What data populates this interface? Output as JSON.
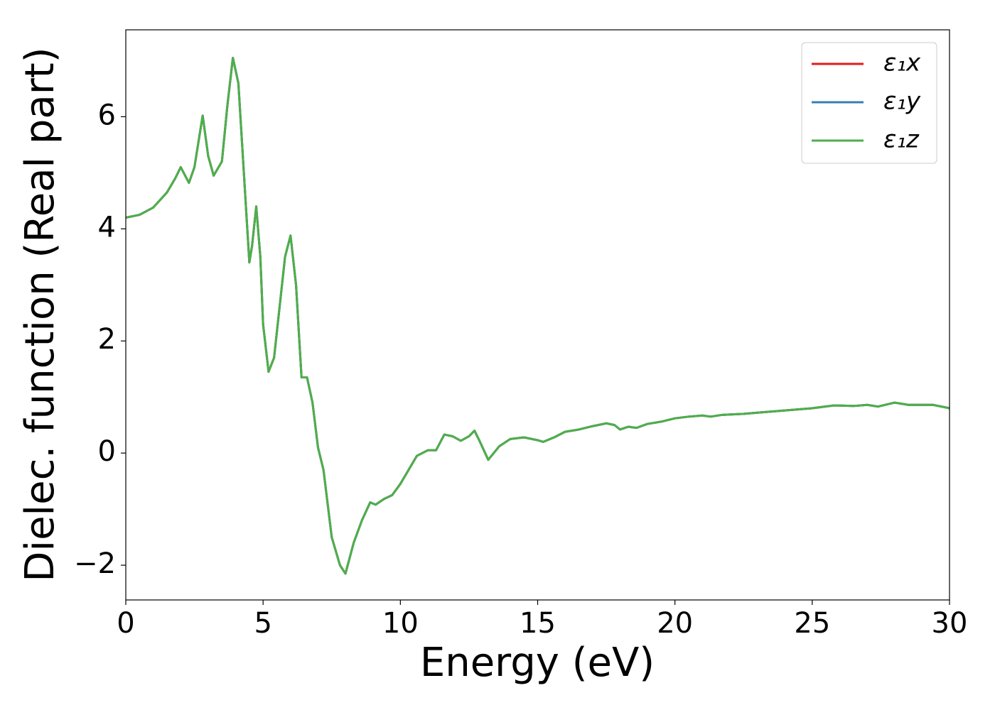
{
  "chart_data": {
    "type": "line",
    "xlabel": "Energy (eV)",
    "ylabel": "Dielec. function (Real part)",
    "x": [
      0,
      0.5,
      1,
      1.5,
      1.8,
      2.0,
      2.3,
      2.5,
      2.8,
      3.0,
      3.2,
      3.5,
      3.7,
      3.9,
      4.1,
      4.3,
      4.5,
      4.6,
      4.75,
      4.9,
      5.0,
      5.2,
      5.4,
      5.6,
      5.8,
      6.0,
      6.2,
      6.4,
      6.6,
      6.8,
      7.0,
      7.2,
      7.5,
      7.8,
      8.0,
      8.3,
      8.6,
      8.9,
      9.1,
      9.4,
      9.7,
      10.0,
      10.3,
      10.6,
      11.0,
      11.3,
      11.6,
      11.9,
      12.2,
      12.5,
      12.7,
      12.9,
      13.2,
      13.6,
      14.0,
      14.5,
      15.0,
      15.2,
      15.6,
      16.0,
      16.5,
      17.0,
      17.5,
      17.8,
      18.0,
      18.3,
      18.6,
      19.0,
      19.5,
      20.0,
      20.5,
      21.0,
      21.3,
      21.7,
      22.5,
      23,
      24,
      25,
      25.8,
      26.5,
      27,
      27.4,
      28,
      28.5,
      29,
      29.4,
      30
    ],
    "series": [
      {
        "name": "ε₁x",
        "color": "#e41a1c",
        "values": [
          4.2,
          4.25,
          4.38,
          4.65,
          4.9,
          5.1,
          4.82,
          5.1,
          6.02,
          5.3,
          4.95,
          5.2,
          6.2,
          7.05,
          6.6,
          5.0,
          3.4,
          3.7,
          4.4,
          3.5,
          2.3,
          1.45,
          1.7,
          2.6,
          3.5,
          3.88,
          3.0,
          1.35,
          1.35,
          0.9,
          0.1,
          -0.3,
          -1.5,
          -2.0,
          -2.15,
          -1.6,
          -1.2,
          -0.88,
          -0.92,
          -0.82,
          -0.75,
          -0.55,
          -0.3,
          -0.05,
          0.05,
          0.05,
          0.33,
          0.3,
          0.22,
          0.3,
          0.4,
          0.2,
          -0.12,
          0.12,
          0.25,
          0.28,
          0.23,
          0.2,
          0.28,
          0.38,
          0.42,
          0.48,
          0.53,
          0.5,
          0.42,
          0.47,
          0.45,
          0.52,
          0.56,
          0.62,
          0.65,
          0.67,
          0.65,
          0.68,
          0.7,
          0.72,
          0.76,
          0.8,
          0.85,
          0.84,
          0.86,
          0.83,
          0.9,
          0.86,
          0.86,
          0.86,
          0.8
        ]
      },
      {
        "name": "ε₁y",
        "color": "#377eb8",
        "values": [
          4.2,
          4.25,
          4.38,
          4.65,
          4.9,
          5.1,
          4.82,
          5.1,
          6.02,
          5.3,
          4.95,
          5.2,
          6.2,
          7.05,
          6.6,
          5.0,
          3.4,
          3.7,
          4.4,
          3.5,
          2.3,
          1.45,
          1.7,
          2.6,
          3.5,
          3.88,
          3.0,
          1.35,
          1.35,
          0.9,
          0.1,
          -0.3,
          -1.5,
          -2.0,
          -2.15,
          -1.6,
          -1.2,
          -0.88,
          -0.92,
          -0.82,
          -0.75,
          -0.55,
          -0.3,
          -0.05,
          0.05,
          0.05,
          0.33,
          0.3,
          0.22,
          0.3,
          0.4,
          0.2,
          -0.12,
          0.12,
          0.25,
          0.28,
          0.23,
          0.2,
          0.28,
          0.38,
          0.42,
          0.48,
          0.53,
          0.5,
          0.42,
          0.47,
          0.45,
          0.52,
          0.56,
          0.62,
          0.65,
          0.67,
          0.65,
          0.68,
          0.7,
          0.72,
          0.76,
          0.8,
          0.85,
          0.84,
          0.86,
          0.83,
          0.9,
          0.86,
          0.86,
          0.86,
          0.8
        ]
      },
      {
        "name": "ε₁z",
        "color": "#4daf4a",
        "values": [
          4.2,
          4.25,
          4.38,
          4.65,
          4.9,
          5.1,
          4.82,
          5.1,
          6.02,
          5.3,
          4.95,
          5.2,
          6.2,
          7.05,
          6.6,
          5.0,
          3.4,
          3.7,
          4.4,
          3.5,
          2.3,
          1.45,
          1.7,
          2.6,
          3.5,
          3.88,
          3.0,
          1.35,
          1.35,
          0.9,
          0.1,
          -0.3,
          -1.5,
          -2.0,
          -2.15,
          -1.6,
          -1.2,
          -0.88,
          -0.92,
          -0.82,
          -0.75,
          -0.55,
          -0.3,
          -0.05,
          0.05,
          0.05,
          0.33,
          0.3,
          0.22,
          0.3,
          0.4,
          0.2,
          -0.12,
          0.12,
          0.25,
          0.28,
          0.23,
          0.2,
          0.28,
          0.38,
          0.42,
          0.48,
          0.53,
          0.5,
          0.42,
          0.47,
          0.45,
          0.52,
          0.56,
          0.62,
          0.65,
          0.67,
          0.65,
          0.68,
          0.7,
          0.72,
          0.76,
          0.8,
          0.85,
          0.84,
          0.86,
          0.83,
          0.9,
          0.86,
          0.86,
          0.86,
          0.8
        ]
      }
    ],
    "xlim": [
      0,
      30
    ],
    "xticks": [
      0,
      5,
      10,
      15,
      20,
      25,
      30
    ],
    "ylim": [
      -2.62,
      7.55
    ],
    "yticks": [
      {
        "value": -2,
        "label": "−2"
      },
      0,
      2,
      4,
      6
    ],
    "legend": "upper right",
    "grid": false
  }
}
